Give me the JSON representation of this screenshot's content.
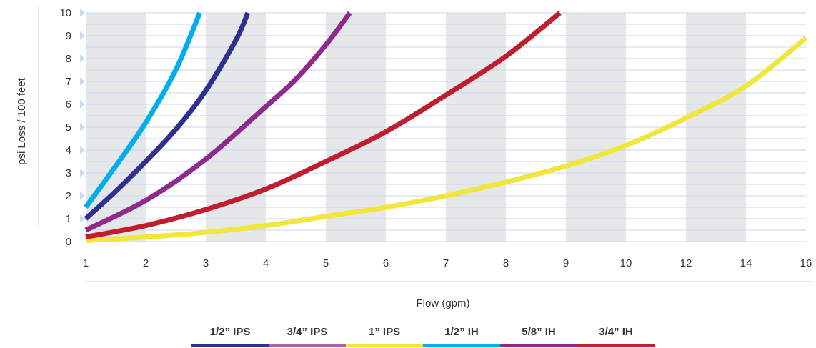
{
  "chart_data": {
    "type": "line",
    "title": "",
    "xlabel": "Flow (gpm)",
    "ylabel": "psi Loss / 100 feet",
    "x_ticks": [
      "1",
      "2",
      "3",
      "4",
      "5",
      "6",
      "7",
      "8",
      "9",
      "10",
      "12",
      "14",
      "16"
    ],
    "y_ticks": [
      "0",
      "1",
      "2",
      "3",
      "4",
      "5",
      "6",
      "7",
      "8",
      "9",
      "10"
    ],
    "ylim": [
      0,
      10
    ],
    "grid": true,
    "legend_position": "bottom",
    "series": [
      {
        "name": "1/2” IPS",
        "color": "#2e3192",
        "x": [
          1,
          1.5,
          2,
          2.5,
          3,
          3.5,
          3.7
        ],
        "y": [
          1.0,
          2.2,
          3.5,
          4.9,
          6.6,
          8.8,
          10
        ]
      },
      {
        "name": "3/4” IPS",
        "color": "#b060a8",
        "line_color": "#8e2a8e",
        "x": [
          1,
          2,
          3,
          4,
          4.5,
          5,
          5.4
        ],
        "y": [
          0.5,
          1.8,
          3.6,
          5.9,
          7.1,
          8.6,
          10
        ]
      },
      {
        "name": "1” IPS",
        "color": "#f0e63c",
        "x": [
          1,
          2,
          3,
          4,
          5,
          6,
          7,
          8,
          9,
          10,
          12,
          14,
          16
        ],
        "y": [
          0.05,
          0.2,
          0.4,
          0.7,
          1.1,
          1.5,
          2.0,
          2.6,
          3.3,
          4.2,
          5.4,
          6.8,
          8.9
        ]
      },
      {
        "name": "1/2” IH",
        "color": "#00aeef",
        "x": [
          1,
          1.5,
          2,
          2.5,
          2.9
        ],
        "y": [
          1.5,
          3.3,
          5.2,
          7.5,
          10
        ]
      },
      {
        "name": "5/8” IH",
        "color": "#92278f",
        "x": [],
        "y": []
      },
      {
        "name": "3/4” IH",
        "color": "#be1e2d",
        "x": [
          1,
          2,
          3,
          4,
          5,
          6,
          7,
          8,
          8.9
        ],
        "y": [
          0.2,
          0.7,
          1.4,
          2.3,
          3.5,
          4.8,
          6.4,
          8.1,
          10
        ]
      }
    ]
  }
}
